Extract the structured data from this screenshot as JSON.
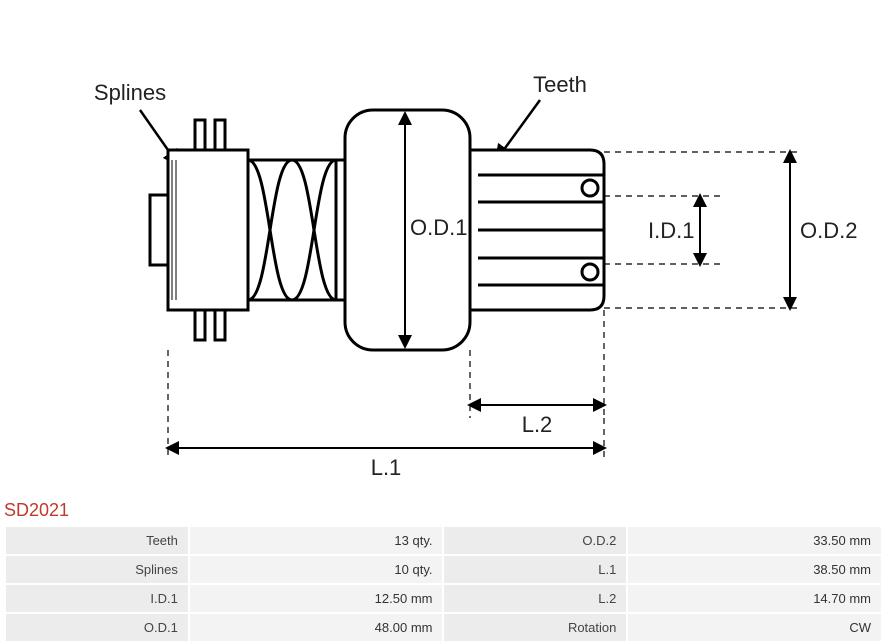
{
  "part_code": "SD2021",
  "diagram": {
    "labels": {
      "splines": "Splines",
      "teeth": "Teeth",
      "od1": "O.D.1",
      "od2": "O.D.2",
      "id1": "I.D.1",
      "l1": "L.1",
      "l2": "L.2"
    },
    "stroke": "#000000",
    "stroke_width_main": 3,
    "stroke_width_dim": 1.5,
    "text_color": "#222222",
    "label_fontsize": 22,
    "dim_fontsize": 22
  },
  "table": {
    "rows": [
      {
        "k1": "Teeth",
        "v1": "13 qty.",
        "k2": "O.D.2",
        "v2": "33.50 mm"
      },
      {
        "k1": "Splines",
        "v1": "10 qty.",
        "k2": "L.1",
        "v2": "38.50 mm"
      },
      {
        "k1": "I.D.1",
        "v1": "12.50 mm",
        "k2": "L.2",
        "v2": "14.70 mm"
      },
      {
        "k1": "O.D.1",
        "v1": "48.00 mm",
        "k2": "Rotation",
        "v2": "CW"
      }
    ]
  }
}
